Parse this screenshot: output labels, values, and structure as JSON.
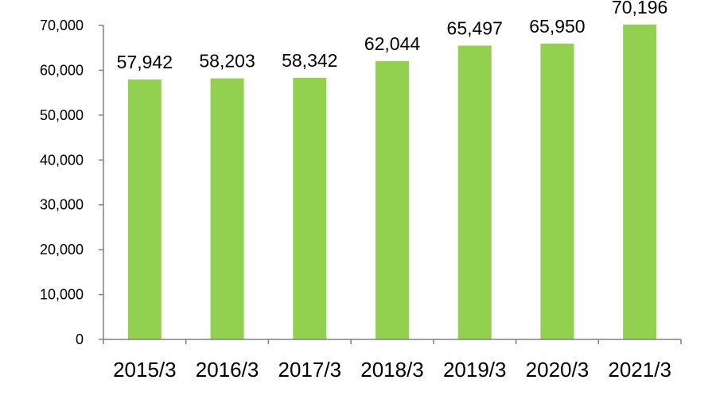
{
  "chart_data": {
    "type": "bar",
    "title": "",
    "xlabel": "",
    "ylabel": "",
    "categories": [
      "2015/3",
      "2016/3",
      "2017/3",
      "2018/3",
      "2019/3",
      "2020/3",
      "2021/3"
    ],
    "values": [
      57942,
      58203,
      58342,
      62044,
      65497,
      65950,
      70196
    ],
    "data_labels": [
      "57,942",
      "58,203",
      "58,342",
      "62,044",
      "65,497",
      "65,950",
      "70,196"
    ],
    "ylim": [
      0,
      70000
    ],
    "yticks": [
      0,
      10000,
      20000,
      30000,
      40000,
      50000,
      60000,
      70000
    ],
    "ytick_labels": [
      "0",
      "10,000",
      "20,000",
      "30,000",
      "40,000",
      "50,000",
      "60,000",
      "70,000"
    ],
    "grid": false,
    "legend": "none",
    "bar_color": "#92d050"
  }
}
